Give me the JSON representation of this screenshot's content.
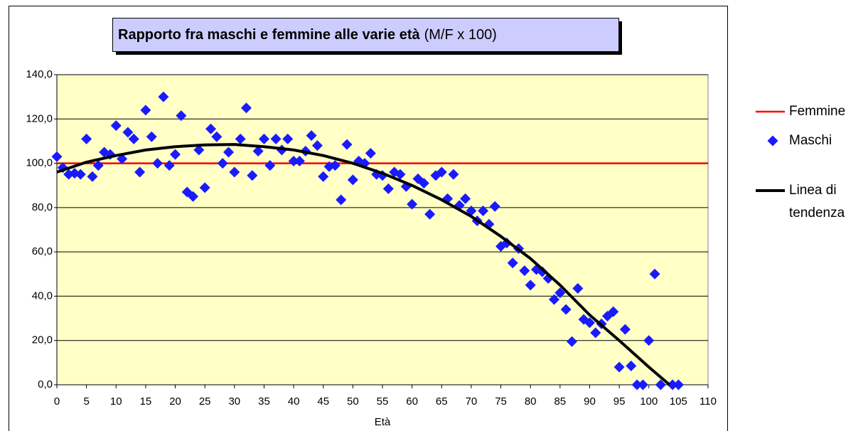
{
  "chart_data": {
    "type": "scatter",
    "title": "Rapporto fra maschi e femmine alle varie età",
    "subtitle": "(M/F x 100)",
    "x_label": "Età",
    "xlim": [
      0,
      110
    ],
    "xticks": [
      0,
      5,
      10,
      15,
      20,
      25,
      30,
      35,
      40,
      45,
      50,
      55,
      60,
      65,
      70,
      75,
      80,
      85,
      90,
      95,
      100,
      105,
      110
    ],
    "ylim": [
      0,
      140
    ],
    "yticks": [
      {
        "value": 0,
        "label": "0,0"
      },
      {
        "value": 20,
        "label": "20,0"
      },
      {
        "value": 40,
        "label": "40,0"
      },
      {
        "value": 60,
        "label": "60,0"
      },
      {
        "value": 80,
        "label": "80,0"
      },
      {
        "value": 100,
        "label": "100,0"
      },
      {
        "value": 120,
        "label": "120,0"
      },
      {
        "value": 140,
        "label": "140,0"
      }
    ],
    "grid": true,
    "legend": "right",
    "series": [
      {
        "name": "Femmine",
        "kind": "line",
        "color": "#ff0000",
        "x": [
          0,
          110
        ],
        "values": [
          100,
          100
        ]
      },
      {
        "name": "Maschi",
        "kind": "marker",
        "color": "#1a1aff",
        "x": [
          0,
          1,
          2,
          3,
          4,
          5,
          6,
          7,
          8,
          9,
          10,
          11,
          12,
          13,
          14,
          15,
          16,
          17,
          18,
          19,
          20,
          21,
          22,
          23,
          24,
          25,
          26,
          27,
          28,
          29,
          30,
          31,
          32,
          33,
          34,
          35,
          36,
          37,
          38,
          39,
          40,
          41,
          42,
          43,
          44,
          45,
          46,
          47,
          48,
          49,
          50,
          51,
          52,
          53,
          54,
          55,
          56,
          57,
          58,
          59,
          60,
          61,
          62,
          63,
          64,
          65,
          66,
          67,
          68,
          69,
          70,
          71,
          72,
          73,
          74,
          75,
          76,
          77,
          78,
          79,
          80,
          81,
          82,
          83,
          84,
          85,
          86,
          87,
          88,
          89,
          90,
          91,
          92,
          93,
          94,
          95,
          96,
          97,
          98,
          99,
          100,
          101,
          102,
          104,
          105
        ],
        "values": [
          103,
          98,
          95,
          95.5,
          95,
          111,
          94,
          99,
          105,
          104,
          117,
          102,
          114,
          111,
          96,
          124,
          112,
          100,
          130,
          99,
          104,
          121.5,
          87,
          85,
          106,
          89,
          115.5,
          112,
          100,
          105,
          96,
          111,
          125,
          94.5,
          105.5,
          111,
          99,
          111,
          106,
          111,
          101,
          101,
          105.5,
          112.5,
          108,
          94,
          98.5,
          99,
          83.5,
          108.5,
          92.5,
          101,
          100,
          104.5,
          95,
          94.5,
          88.5,
          96,
          95,
          89.5,
          81.5,
          93,
          91,
          77,
          94.5,
          96,
          84,
          95,
          81,
          84,
          78.5,
          74,
          78.5,
          72.5,
          80.5,
          62.5,
          64,
          55,
          61.5,
          51.5,
          45,
          52,
          51,
          48,
          38.5,
          41.5,
          34,
          19.5,
          43.5,
          29.5,
          28,
          23.5,
          27.5,
          31,
          33,
          8,
          25,
          8.5,
          0,
          0,
          20,
          50,
          0,
          0,
          0
        ]
      },
      {
        "name": "Linea di tendenza",
        "kind": "trend",
        "color": "#000000",
        "x": [
          0,
          5,
          10,
          15,
          20,
          25,
          30,
          35,
          40,
          45,
          50,
          55,
          60,
          65,
          70,
          75,
          80,
          85,
          90,
          95,
          100,
          103.5
        ],
        "values": [
          96,
          100.5,
          103.5,
          106,
          107.5,
          108.3,
          108.5,
          107.5,
          106,
          103.5,
          100,
          95.5,
          90,
          83.5,
          76,
          67,
          57,
          45,
          31.5,
          20,
          8,
          0
        ]
      }
    ]
  }
}
